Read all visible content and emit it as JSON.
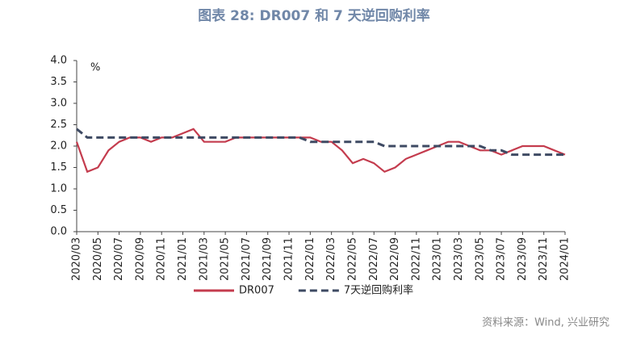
{
  "chart_data": {
    "type": "line",
    "title": "图表 28: DR007 和 7 天逆回购利率",
    "unit_label": "%",
    "source": "资料来源：Wind, 兴业研究",
    "categories": [
      "2020/03",
      null,
      "2020/05",
      null,
      "2020/07",
      null,
      "2020/09",
      null,
      "2020/11",
      null,
      "2021/01",
      null,
      "2021/03",
      null,
      "2021/05",
      null,
      "2021/07",
      null,
      "2021/09",
      null,
      "2021/11",
      null,
      "2022/01",
      null,
      "2022/03",
      null,
      "2022/05",
      null,
      "2022/07",
      null,
      "2022/09",
      null,
      "2022/11",
      null,
      "2023/01",
      null,
      "2023/03",
      null,
      "2023/05",
      null,
      "2023/07",
      null,
      "2023/09",
      null,
      "2023/11",
      null,
      "2024/01"
    ],
    "series": [
      {
        "name": "DR007",
        "color": "#c43c4e",
        "dash": false,
        "values": [
          2.1,
          1.4,
          1.5,
          1.9,
          2.1,
          2.2,
          2.2,
          2.1,
          2.2,
          2.2,
          2.3,
          2.4,
          2.1,
          2.1,
          2.1,
          2.2,
          2.2,
          2.2,
          2.2,
          2.2,
          2.2,
          2.2,
          2.2,
          2.1,
          2.1,
          1.9,
          1.6,
          1.7,
          1.6,
          1.4,
          1.5,
          1.7,
          1.8,
          1.9,
          2.0,
          2.1,
          2.1,
          2.0,
          1.9,
          1.9,
          1.8,
          1.9,
          2.0,
          2.0,
          2.0,
          1.9,
          1.8
        ]
      },
      {
        "name": "7天逆回购利率",
        "color": "#3e4a63",
        "dash": true,
        "values": [
          2.4,
          2.2,
          2.2,
          2.2,
          2.2,
          2.2,
          2.2,
          2.2,
          2.2,
          2.2,
          2.2,
          2.2,
          2.2,
          2.2,
          2.2,
          2.2,
          2.2,
          2.2,
          2.2,
          2.2,
          2.2,
          2.2,
          2.1,
          2.1,
          2.1,
          2.1,
          2.1,
          2.1,
          2.1,
          2.0,
          2.0,
          2.0,
          2.0,
          2.0,
          2.0,
          2.0,
          2.0,
          2.0,
          2.0,
          1.9,
          1.9,
          1.8,
          1.8,
          1.8,
          1.8,
          1.8,
          1.8
        ]
      }
    ],
    "ylim": [
      0,
      4
    ],
    "yticks": [
      {
        "value": 0,
        "label": "0.0"
      },
      {
        "value": 0.5,
        "label": "0.5"
      },
      {
        "value": 1,
        "label": "1.0"
      },
      {
        "value": 1.5,
        "label": "1.5"
      },
      {
        "value": 2,
        "label": "2.0"
      },
      {
        "value": 2.5,
        "label": "2.5"
      },
      {
        "value": 3,
        "label": "3.0"
      },
      {
        "value": 3.5,
        "label": "3.5"
      },
      {
        "value": 4,
        "label": "4.0"
      }
    ],
    "grid": false,
    "legend": "bottom"
  }
}
